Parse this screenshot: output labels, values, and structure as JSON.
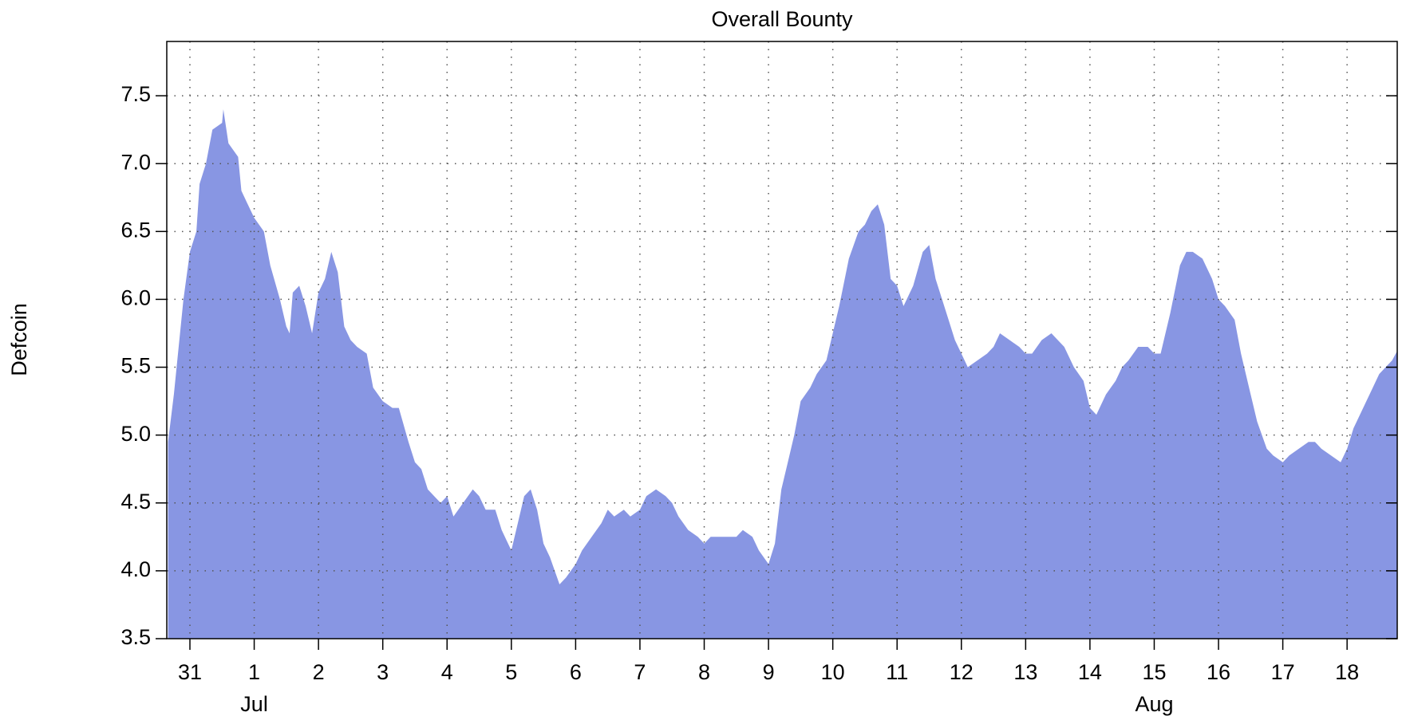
{
  "chart_data": {
    "type": "area",
    "title": "Overall Bounty",
    "ylabel": "Defcoin",
    "color": "#8896e3",
    "grid": true,
    "x": [
      -0.34,
      -0.25,
      -0.1,
      0,
      0.1,
      0.15,
      0.25,
      0.35,
      0.5,
      0.52,
      0.6,
      0.75,
      0.8,
      0.9,
      1,
      1.15,
      1.25,
      1.4,
      1.5,
      1.55,
      1.6,
      1.7,
      1.8,
      1.9,
      2,
      2.1,
      2.2,
      2.3,
      2.4,
      2.5,
      2.6,
      2.75,
      2.85,
      3,
      3.15,
      3.25,
      3.4,
      3.5,
      3.6,
      3.7,
      3.8,
      3.9,
      4,
      4.1,
      4.25,
      4.4,
      4.5,
      4.6,
      4.75,
      4.85,
      5,
      5.1,
      5.2,
      5.3,
      5.4,
      5.5,
      5.6,
      5.75,
      5.85,
      6,
      6.1,
      6.25,
      6.4,
      6.5,
      6.6,
      6.75,
      6.85,
      7,
      7.1,
      7.25,
      7.4,
      7.5,
      7.6,
      7.75,
      7.9,
      8,
      8.1,
      8.25,
      8.4,
      8.5,
      8.6,
      8.75,
      8.85,
      9,
      9.1,
      9.2,
      9.3,
      9.4,
      9.5,
      9.65,
      9.75,
      9.9,
      10,
      10.1,
      10.25,
      10.4,
      10.5,
      10.6,
      10.7,
      10.8,
      10.9,
      11,
      11.1,
      11.25,
      11.4,
      11.5,
      11.6,
      11.7,
      11.8,
      11.9,
      12,
      12.1,
      12.25,
      12.4,
      12.5,
      12.6,
      12.75,
      12.9,
      13,
      13.1,
      13.25,
      13.4,
      13.5,
      13.6,
      13.75,
      13.9,
      14,
      14.1,
      14.25,
      14.4,
      14.5,
      14.6,
      14.75,
      14.9,
      15,
      15.1,
      15.25,
      15.4,
      15.5,
      15.6,
      15.75,
      15.9,
      16,
      16.1,
      16.25,
      16.35,
      16.5,
      16.6,
      16.75,
      16.85,
      17,
      17.1,
      17.25,
      17.4,
      17.5,
      17.6,
      17.75,
      17.9,
      18,
      18.1,
      18.25,
      18.4,
      18.5,
      18.6,
      18.7,
      18.78
    ],
    "values": [
      4.95,
      5.3,
      6.0,
      6.35,
      6.5,
      6.85,
      7.0,
      7.25,
      7.3,
      7.4,
      7.15,
      7.05,
      6.8,
      6.7,
      6.6,
      6.5,
      6.25,
      6.0,
      5.8,
      5.75,
      6.05,
      6.1,
      5.95,
      5.75,
      6.05,
      6.15,
      6.35,
      6.2,
      5.8,
      5.7,
      5.65,
      5.6,
      5.35,
      5.25,
      5.2,
      5.2,
      4.95,
      4.8,
      4.75,
      4.6,
      4.55,
      4.5,
      4.55,
      4.4,
      4.5,
      4.6,
      4.55,
      4.45,
      4.45,
      4.3,
      4.15,
      4.35,
      4.55,
      4.6,
      4.45,
      4.2,
      4.1,
      3.9,
      3.95,
      4.05,
      4.15,
      4.25,
      4.35,
      4.45,
      4.4,
      4.45,
      4.4,
      4.45,
      4.55,
      4.6,
      4.55,
      4.5,
      4.4,
      4.3,
      4.25,
      4.2,
      4.25,
      4.25,
      4.25,
      4.25,
      4.3,
      4.25,
      4.15,
      4.05,
      4.2,
      4.6,
      4.8,
      5.0,
      5.25,
      5.35,
      5.45,
      5.55,
      5.75,
      5.95,
      6.3,
      6.5,
      6.55,
      6.65,
      6.7,
      6.55,
      6.15,
      6.1,
      5.95,
      6.1,
      6.35,
      6.4,
      6.15,
      6.0,
      5.85,
      5.7,
      5.6,
      5.5,
      5.55,
      5.6,
      5.65,
      5.75,
      5.7,
      5.65,
      5.6,
      5.6,
      5.7,
      5.75,
      5.7,
      5.65,
      5.5,
      5.4,
      5.2,
      5.15,
      5.3,
      5.4,
      5.5,
      5.55,
      5.65,
      5.65,
      5.6,
      5.6,
      5.9,
      6.25,
      6.35,
      6.35,
      6.3,
      6.15,
      6.0,
      5.95,
      5.85,
      5.6,
      5.3,
      5.1,
      4.9,
      4.85,
      4.8,
      4.85,
      4.9,
      4.95,
      4.95,
      4.9,
      4.85,
      4.8,
      4.9,
      5.05,
      5.2,
      5.35,
      5.45,
      5.5,
      5.55,
      5.62
    ],
    "xlim": [
      -0.36,
      18.78
    ],
    "xticks": [
      {
        "value": 0,
        "label": "31"
      },
      {
        "value": 1,
        "label": "1"
      },
      {
        "value": 2,
        "label": "2"
      },
      {
        "value": 3,
        "label": "3"
      },
      {
        "value": 4,
        "label": "4"
      },
      {
        "value": 5,
        "label": "5"
      },
      {
        "value": 6,
        "label": "6"
      },
      {
        "value": 7,
        "label": "7"
      },
      {
        "value": 8,
        "label": "8"
      },
      {
        "value": 9,
        "label": "9"
      },
      {
        "value": 10,
        "label": "10"
      },
      {
        "value": 11,
        "label": "11"
      },
      {
        "value": 12,
        "label": "12"
      },
      {
        "value": 13,
        "label": "13"
      },
      {
        "value": 14,
        "label": "14"
      },
      {
        "value": 15,
        "label": "15"
      },
      {
        "value": 16,
        "label": "16"
      },
      {
        "value": 17,
        "label": "17"
      },
      {
        "value": 18,
        "label": "18"
      }
    ],
    "month_labels": [
      {
        "value": 1,
        "label": "Jul"
      },
      {
        "value": 15,
        "label": "Aug"
      }
    ],
    "ylim": [
      3.5,
      7.9
    ],
    "yticks": [
      3.5,
      {
        "value": 4,
        "label": "4.0"
      },
      4.5,
      {
        "value": 5,
        "label": "5.0"
      },
      5.5,
      {
        "value": 6,
        "label": "6.0"
      },
      6.5,
      {
        "value": 7,
        "label": "7.0"
      },
      7.5
    ]
  }
}
